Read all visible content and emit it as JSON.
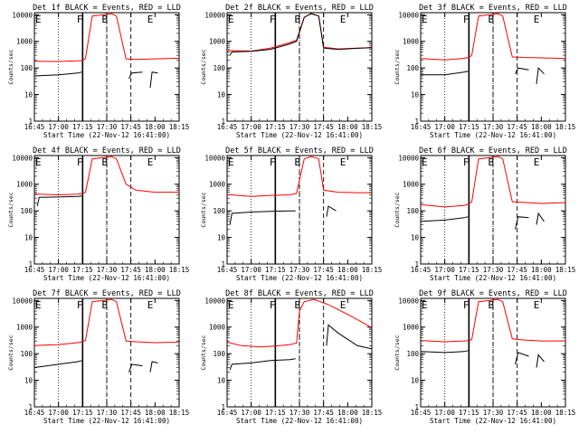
{
  "chart_data": [
    {
      "type": "line",
      "title": "Det 1f BLACK = Events, RED = LLD",
      "xlabel": "Start Time (22-Nov-12 16:41:00)",
      "ylabel": "Counts/sec",
      "x_ticks": [
        "16:45",
        "17:00",
        "17:15",
        "17:30",
        "17:45",
        "18:00",
        "18:15"
      ],
      "y_ticks": [
        "1",
        "10",
        "100",
        "1000",
        "10000"
      ],
      "ylim": [
        1,
        12000
      ],
      "yscale": "log",
      "markers": [
        "E",
        "F",
        "B",
        "E"
      ],
      "red_x": [
        16.7,
        17.0,
        17.2,
        17.25,
        17.28,
        17.35,
        17.55,
        17.6,
        17.7,
        17.8,
        18.0,
        18.2,
        18.33
      ],
      "red_y": [
        180,
        175,
        185,
        190,
        230,
        9000,
        11000,
        9000,
        220,
        210,
        220,
        230,
        230
      ],
      "black_segments": [
        {
          "x": [
            16.73,
            16.75,
            17.0,
            17.2,
            17.24
          ],
          "y": [
            30,
            50,
            55,
            65,
            70
          ]
        },
        {
          "x": [
            17.73,
            17.76,
            17.87
          ],
          "y": [
            40,
            65,
            70
          ]
        },
        {
          "x": [
            17.95,
            17.97,
            18.03
          ],
          "y": [
            18,
            70,
            65
          ]
        }
      ]
    },
    {
      "type": "line",
      "title": "Det 2f BLACK = Events, RED = LLD",
      "xlabel": "Start Time (22-Nov-12 16:41:00)",
      "ylabel": "Counts/sec",
      "x_ticks": [
        "16:45",
        "17:00",
        "17:15",
        "17:30",
        "17:45",
        "18:00",
        "18:15"
      ],
      "y_ticks": [
        "1",
        "10",
        "100",
        "1000",
        "10000"
      ],
      "ylim": [
        1,
        12000
      ],
      "yscale": "log",
      "markers": [
        "E",
        "F",
        "B",
        "E"
      ],
      "red_x": [
        16.7,
        17.0,
        17.2,
        17.4,
        17.47,
        17.55,
        17.62,
        17.7,
        17.75,
        17.9,
        18.1,
        18.33
      ],
      "red_y": [
        450,
        430,
        560,
        900,
        1100,
        8000,
        11000,
        9000,
        600,
        520,
        560,
        600
      ],
      "black_segments": [
        {
          "x": [
            16.78,
            16.8,
            17.0,
            17.2,
            17.4,
            17.47,
            17.55,
            17.62,
            17.7,
            17.75,
            17.9,
            18.1,
            18.3
          ],
          "y": [
            300,
            400,
            420,
            500,
            800,
            1000,
            8000,
            11000,
            9000,
            560,
            500,
            550,
            590
          ]
        }
      ]
    },
    {
      "type": "line",
      "title": "Det 3f BLACK = Events, RED = LLD",
      "xlabel": "Start Time (22-Nov-12 16:41:00)",
      "ylabel": "Counts/sec",
      "x_ticks": [
        "16:45",
        "17:00",
        "17:15",
        "17:30",
        "17:45",
        "18:00",
        "18:15"
      ],
      "y_ticks": [
        "1",
        "10",
        "100",
        "1000",
        "10000"
      ],
      "ylim": [
        1,
        12000
      ],
      "yscale": "log",
      "markers": [
        "E",
        "F",
        "B",
        "E"
      ],
      "red_x": [
        16.7,
        17.0,
        17.2,
        17.25,
        17.28,
        17.35,
        17.55,
        17.6,
        17.7,
        17.8,
        18.0,
        18.2,
        18.33
      ],
      "red_y": [
        230,
        200,
        230,
        250,
        300,
        9000,
        11000,
        9000,
        260,
        250,
        240,
        230,
        220
      ],
      "black_segments": [
        {
          "x": [
            16.73,
            16.75,
            17.0,
            17.2,
            17.24
          ],
          "y": [
            35,
            55,
            55,
            70,
            75
          ]
        },
        {
          "x": [
            17.73,
            17.76,
            17.87
          ],
          "y": [
            60,
            100,
            85
          ]
        },
        {
          "x": [
            17.95,
            17.97,
            18.03
          ],
          "y": [
            25,
            100,
            60
          ]
        }
      ]
    },
    {
      "type": "line",
      "title": "Det 4f BLACK = Events, RED = LLD",
      "xlabel": "Start Time (22-Nov-12 16:41:00)",
      "ylabel": "Counts/sec",
      "x_ticks": [
        "16:45",
        "17:00",
        "17:15",
        "17:30",
        "17:45",
        "18:00",
        "18:15"
      ],
      "y_ticks": [
        "1",
        "10",
        "100",
        "1000",
        "10000"
      ],
      "ylim": [
        1,
        12000
      ],
      "yscale": "log",
      "markers": [
        "E",
        "F",
        "B",
        "E"
      ],
      "red_x": [
        16.7,
        16.8,
        17.0,
        17.2,
        17.25,
        17.28,
        17.35,
        17.55,
        17.6,
        17.7,
        17.8,
        18.0,
        18.2,
        18.33
      ],
      "red_y": [
        480,
        420,
        400,
        420,
        450,
        500,
        9000,
        11000,
        9000,
        1000,
        600,
        500,
        500,
        500
      ],
      "black_segments": [
        {
          "x": [
            16.78,
            16.8,
            17.0,
            17.2,
            17.24
          ],
          "y": [
            150,
            320,
            330,
            350,
            360
          ]
        }
      ]
    },
    {
      "type": "line",
      "title": "Det 5f BLACK = Events, RED = LLD",
      "xlabel": "Start Time (22-Nov-12 16:41:00)",
      "ylabel": "Counts/sec",
      "x_ticks": [
        "16:45",
        "17:00",
        "17:15",
        "17:30",
        "17:45",
        "18:00",
        "18:15"
      ],
      "y_ticks": [
        "1",
        "10",
        "100",
        "1000",
        "10000"
      ],
      "ylim": [
        1,
        12000
      ],
      "yscale": "log",
      "markers": [
        "E",
        "F",
        "B",
        "E"
      ],
      "red_x": [
        16.7,
        17.0,
        17.2,
        17.4,
        17.47,
        17.55,
        17.62,
        17.7,
        17.75,
        17.9,
        18.1,
        18.33
      ],
      "red_y": [
        420,
        350,
        380,
        400,
        450,
        9000,
        11000,
        9000,
        600,
        500,
        480,
        480
      ],
      "black_segments": [
        {
          "x": [
            16.78,
            16.8,
            17.0,
            17.2,
            17.4,
            17.46
          ],
          "y": [
            30,
            80,
            90,
            95,
            100,
            100
          ]
        },
        {
          "x": [
            17.78,
            17.8,
            17.88
          ],
          "y": [
            60,
            150,
            100
          ]
        }
      ]
    },
    {
      "type": "line",
      "title": "Det 6f BLACK = Events, RED = LLD",
      "xlabel": "Start Time (22-Nov-12 16:41:00)",
      "ylabel": "Counts/sec",
      "x_ticks": [
        "16:45",
        "17:00",
        "17:15",
        "17:30",
        "17:45",
        "18:00",
        "18:15"
      ],
      "y_ticks": [
        "1",
        "10",
        "100",
        "1000",
        "10000"
      ],
      "ylim": [
        1,
        12000
      ],
      "yscale": "log",
      "markers": [
        "E",
        "F",
        "B",
        "E"
      ],
      "red_x": [
        16.7,
        17.0,
        17.2,
        17.25,
        17.28,
        17.35,
        17.55,
        17.6,
        17.7,
        17.8,
        18.0,
        18.2,
        18.33
      ],
      "red_y": [
        180,
        140,
        160,
        180,
        220,
        9000,
        11000,
        9000,
        220,
        210,
        190,
        200,
        210
      ],
      "black_segments": [
        {
          "x": [
            16.73,
            16.75,
            17.0,
            17.2,
            17.24
          ],
          "y": [
            25,
            40,
            45,
            55,
            60
          ]
        },
        {
          "x": [
            17.73,
            17.76,
            17.87
          ],
          "y": [
            20,
            60,
            55
          ]
        },
        {
          "x": [
            17.95,
            17.97,
            18.03
          ],
          "y": [
            30,
            80,
            40
          ]
        }
      ]
    },
    {
      "type": "line",
      "title": "Det 7f BLACK = Events, RED = LLD",
      "xlabel": "Start Time (22-Nov-12 16:41:00)",
      "ylabel": "Counts/sec",
      "x_ticks": [
        "16:45",
        "17:00",
        "17:15",
        "17:30",
        "17:45",
        "18:00",
        "18:15"
      ],
      "y_ticks": [
        "1",
        "10",
        "100",
        "1000",
        "10000"
      ],
      "ylim": [
        1,
        12000
      ],
      "yscale": "log",
      "markers": [
        "E",
        "F",
        "B",
        "E"
      ],
      "red_x": [
        16.7,
        17.0,
        17.2,
        17.25,
        17.28,
        17.35,
        17.55,
        17.6,
        17.7,
        17.8,
        18.0,
        18.2,
        18.33
      ],
      "red_y": [
        200,
        220,
        260,
        280,
        320,
        9000,
        11000,
        9000,
        300,
        280,
        260,
        270,
        300
      ],
      "black_segments": [
        {
          "x": [
            16.73,
            16.75,
            17.0,
            17.2,
            17.24
          ],
          "y": [
            15,
            30,
            40,
            50,
            55
          ]
        },
        {
          "x": [
            17.73,
            17.76,
            17.87
          ],
          "y": [
            20,
            40,
            35
          ]
        },
        {
          "x": [
            17.95,
            17.97,
            18.03
          ],
          "y": [
            20,
            50,
            45
          ]
        }
      ]
    },
    {
      "type": "line",
      "title": "Det 8f BLACK = Events, RED = LLD",
      "xlabel": "Start Time (22-Nov-12 16:41:00)",
      "ylabel": "Counts/sec",
      "x_ticks": [
        "16:45",
        "17:00",
        "17:15",
        "17:30",
        "17:45",
        "18:00",
        "18:15"
      ],
      "y_ticks": [
        "1",
        "10",
        "100",
        "1000",
        "10000"
      ],
      "ylim": [
        1,
        12000
      ],
      "yscale": "log",
      "markers": [
        "E",
        "F",
        "B",
        "E"
      ],
      "red_x": [
        16.7,
        16.9,
        17.1,
        17.3,
        17.4,
        17.47,
        17.5,
        17.55,
        17.65,
        17.8,
        18.0,
        18.2,
        18.33
      ],
      "red_y": [
        300,
        200,
        180,
        200,
        220,
        250,
        4000,
        9000,
        11000,
        7000,
        3000,
        1200,
        600
      ],
      "black_segments": [
        {
          "x": [
            16.78,
            16.8,
            17.0,
            17.2,
            17.4,
            17.46
          ],
          "y": [
            25,
            40,
            45,
            55,
            60,
            65
          ]
        },
        {
          "x": [
            17.78,
            17.8,
            17.9,
            18.1,
            18.33
          ],
          "y": [
            200,
            1200,
            600,
            200,
            130
          ]
        }
      ]
    },
    {
      "type": "line",
      "title": "Det 9f BLACK = Events, RED = LLD",
      "xlabel": "Start Time (22-Nov-12 16:41:00)",
      "ylabel": "Counts/sec",
      "x_ticks": [
        "16:45",
        "17:00",
        "17:15",
        "17:30",
        "17:45",
        "18:00",
        "18:15"
      ],
      "y_ticks": [
        "1",
        "10",
        "100",
        "1000",
        "10000"
      ],
      "ylim": [
        1,
        12000
      ],
      "yscale": "log",
      "markers": [
        "E",
        "F",
        "B",
        "E"
      ],
      "red_x": [
        16.7,
        17.0,
        17.2,
        17.25,
        17.28,
        17.35,
        17.55,
        17.6,
        17.7,
        17.8,
        18.0,
        18.2,
        18.33
      ],
      "red_y": [
        320,
        280,
        300,
        310,
        340,
        9000,
        11000,
        9000,
        360,
        330,
        300,
        300,
        310
      ],
      "black_segments": [
        {
          "x": [
            16.73,
            16.75,
            17.0,
            17.2,
            17.24
          ],
          "y": [
            40,
            120,
            110,
            120,
            130
          ]
        },
        {
          "x": [
            17.73,
            17.76,
            17.87
          ],
          "y": [
            40,
            110,
            80
          ]
        },
        {
          "x": [
            17.95,
            17.97,
            18.03
          ],
          "y": [
            30,
            90,
            50
          ]
        }
      ]
    }
  ],
  "colors": {
    "red": "#ff0000",
    "black": "#000000"
  }
}
